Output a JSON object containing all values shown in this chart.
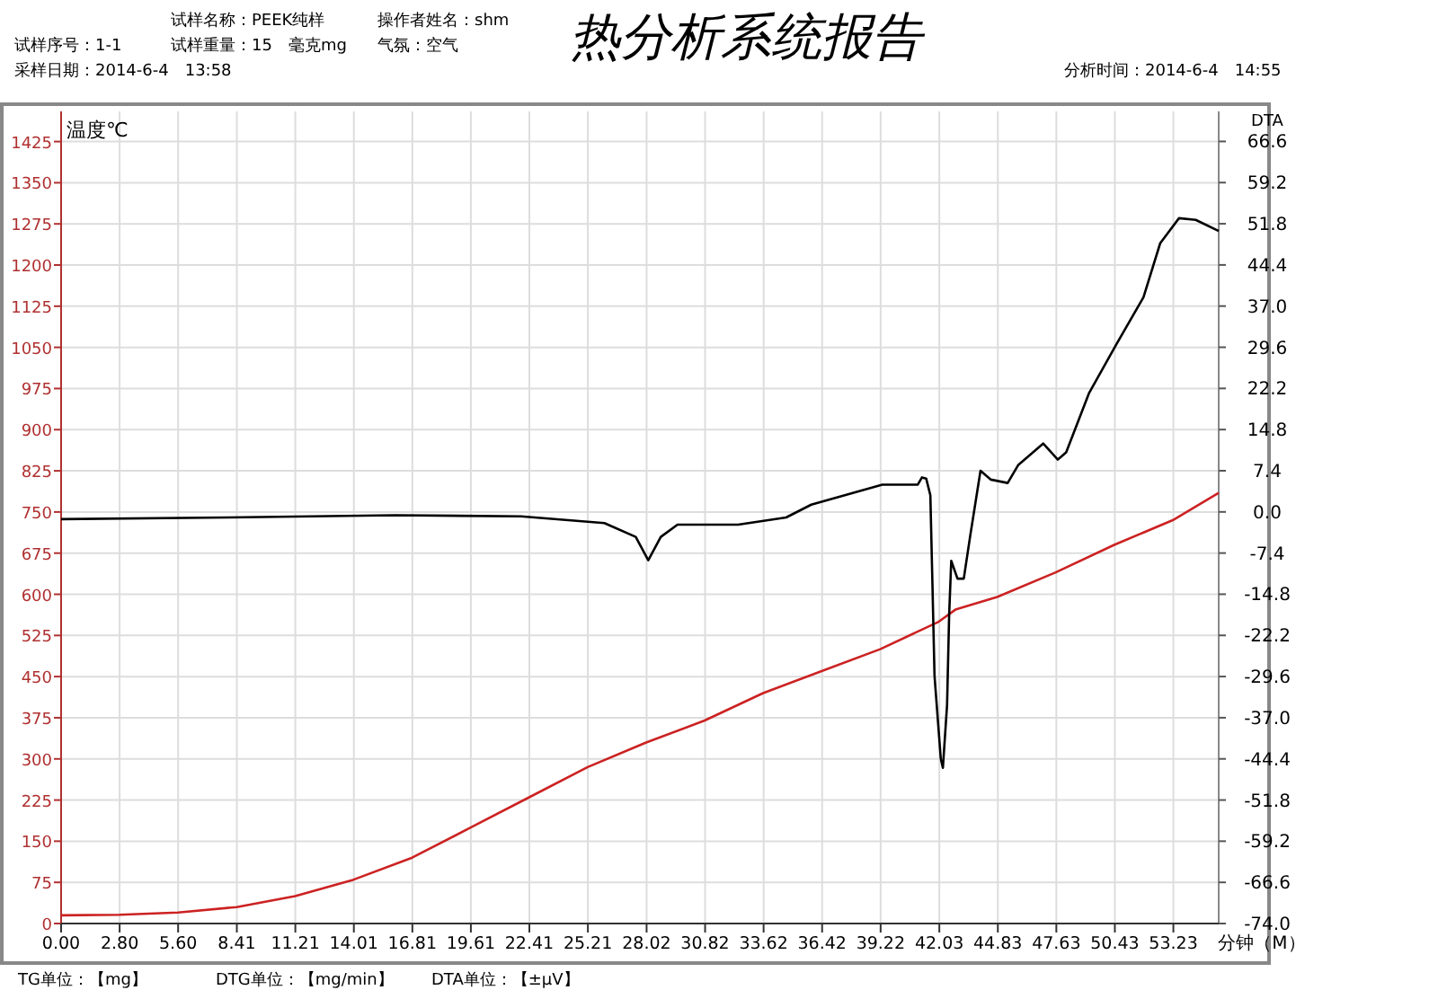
{
  "chart_data": {
    "type": "line",
    "title": "热分析系统报告",
    "ylabel": "温度℃",
    "y2label": "DTA",
    "xlabel": "分钟（M）",
    "annotations": [
      "试样名称：PEEK纯样",
      "操作者姓名：shm",
      "试样序号：1-1",
      "试样重量：15　毫克mg",
      "气氛：空气",
      "采样日期：2014-6-4　13:58",
      "分析时间：2014-6-4　14:55",
      "TG单位：【mg】",
      "DTG单位：【mg/min】",
      "DTA单位：【±μV】"
    ],
    "xlim": [
      0,
      55.4
    ],
    "ylim": [
      0,
      1480
    ],
    "y2lim": [
      -74,
      72
    ],
    "xticks": [
      {
        "value": 0,
        "label": "0.00"
      },
      {
        "value": 2.8,
        "label": "2.80"
      },
      {
        "value": 5.6,
        "label": "5.60"
      },
      {
        "value": 8.41,
        "label": "8.41"
      },
      {
        "value": 11.21,
        "label": "11.21"
      },
      {
        "value": 14.01,
        "label": "14.01"
      },
      {
        "value": 16.81,
        "label": "16.81"
      },
      {
        "value": 19.61,
        "label": "19.61"
      },
      {
        "value": 22.41,
        "label": "22.41"
      },
      {
        "value": 25.21,
        "label": "25.21"
      },
      {
        "value": 28.02,
        "label": "28.02"
      },
      {
        "value": 30.82,
        "label": "30.82"
      },
      {
        "value": 33.62,
        "label": "33.62"
      },
      {
        "value": 36.42,
        "label": "36.42"
      },
      {
        "value": 39.22,
        "label": "39.22"
      },
      {
        "value": 42.03,
        "label": "42.03"
      },
      {
        "value": 44.83,
        "label": "44.83"
      },
      {
        "value": 47.63,
        "label": "47.63"
      },
      {
        "value": 50.43,
        "label": "50.43"
      },
      {
        "value": 53.23,
        "label": "53.23"
      }
    ],
    "yticks": [
      0,
      75,
      150,
      225,
      300,
      375,
      450,
      525,
      600,
      675,
      750,
      825,
      900,
      975,
      1050,
      1125,
      1200,
      1275,
      1350,
      1425
    ],
    "y2ticks": [
      {
        "value": -74,
        "label": "-74.0"
      },
      {
        "value": -66.6,
        "label": "-66.6"
      },
      {
        "value": -59.2,
        "label": "-59.2"
      },
      {
        "value": -51.8,
        "label": "-51.8"
      },
      {
        "value": -44.4,
        "label": "-44.4"
      },
      {
        "value": -37,
        "label": "-37.0"
      },
      {
        "value": -29.6,
        "label": "-29.6"
      },
      {
        "value": -22.2,
        "label": "-22.2"
      },
      {
        "value": -14.8,
        "label": "-14.8"
      },
      {
        "value": -7.4,
        "label": "-7.4"
      },
      {
        "value": 0,
        "label": "0.0"
      },
      {
        "value": 7.4,
        "label": "7.4"
      },
      {
        "value": 14.8,
        "label": "14.8"
      },
      {
        "value": 22.2,
        "label": "22.2"
      },
      {
        "value": 29.6,
        "label": "29.6"
      },
      {
        "value": 37,
        "label": "37.0"
      },
      {
        "value": 44.4,
        "label": "44.4"
      },
      {
        "value": 51.8,
        "label": "51.8"
      },
      {
        "value": 59.2,
        "label": "59.2"
      },
      {
        "value": 66.6,
        "label": "66.6"
      }
    ],
    "grid": true,
    "line_style": "solid",
    "marker": "none",
    "series": [
      {
        "color": "#cc2222",
        "x": [
          0,
          2.8,
          5.6,
          8.4,
          11.2,
          14,
          16.8,
          19.6,
          22.4,
          25.2,
          28,
          30.8,
          33.6,
          36.4,
          39.2,
          42,
          42.8,
          44.8,
          47.6,
          50.4,
          53.2,
          55.4
        ],
        "values": [
          15,
          16,
          20,
          30,
          50,
          80,
          120,
          175,
          230,
          285,
          330,
          370,
          420,
          460,
          500,
          550,
          572,
          595,
          640,
          690,
          735,
          785
        ]
      },
      {
        "color": "#000000",
        "axis": "y2",
        "x": [
          0,
          8,
          16,
          22,
          26,
          27.5,
          28.1,
          28.7,
          29.5,
          31.5,
          32.4,
          34.7,
          35.9,
          39.3,
          41,
          41.2,
          41.4,
          41.6,
          41.7,
          41.8,
          42.1,
          42.2,
          42.4,
          42.5,
          42.6,
          42.9,
          43.2,
          43.5,
          44,
          44.5,
          45.3,
          45.8,
          47,
          47.7,
          48.1,
          49.2,
          50.5,
          51.8,
          52.6,
          53.5,
          54.3,
          55.4
        ],
        "values": [
          -1.3,
          -1,
          -0.6,
          -0.8,
          -2,
          -4.5,
          -8.7,
          -4.5,
          -2.3,
          -2.3,
          -2.3,
          -1,
          1.3,
          4.9,
          4.9,
          6.2,
          6,
          3,
          -13,
          -29.5,
          -44.4,
          -46,
          -34.7,
          -18.5,
          -8.8,
          -12,
          -12,
          -4.5,
          7.4,
          5.8,
          5.2,
          8.4,
          12.3,
          9.4,
          10.7,
          21.4,
          30.1,
          38.6,
          48.3,
          52.8,
          52.5,
          50.5
        ]
      }
    ]
  }
}
